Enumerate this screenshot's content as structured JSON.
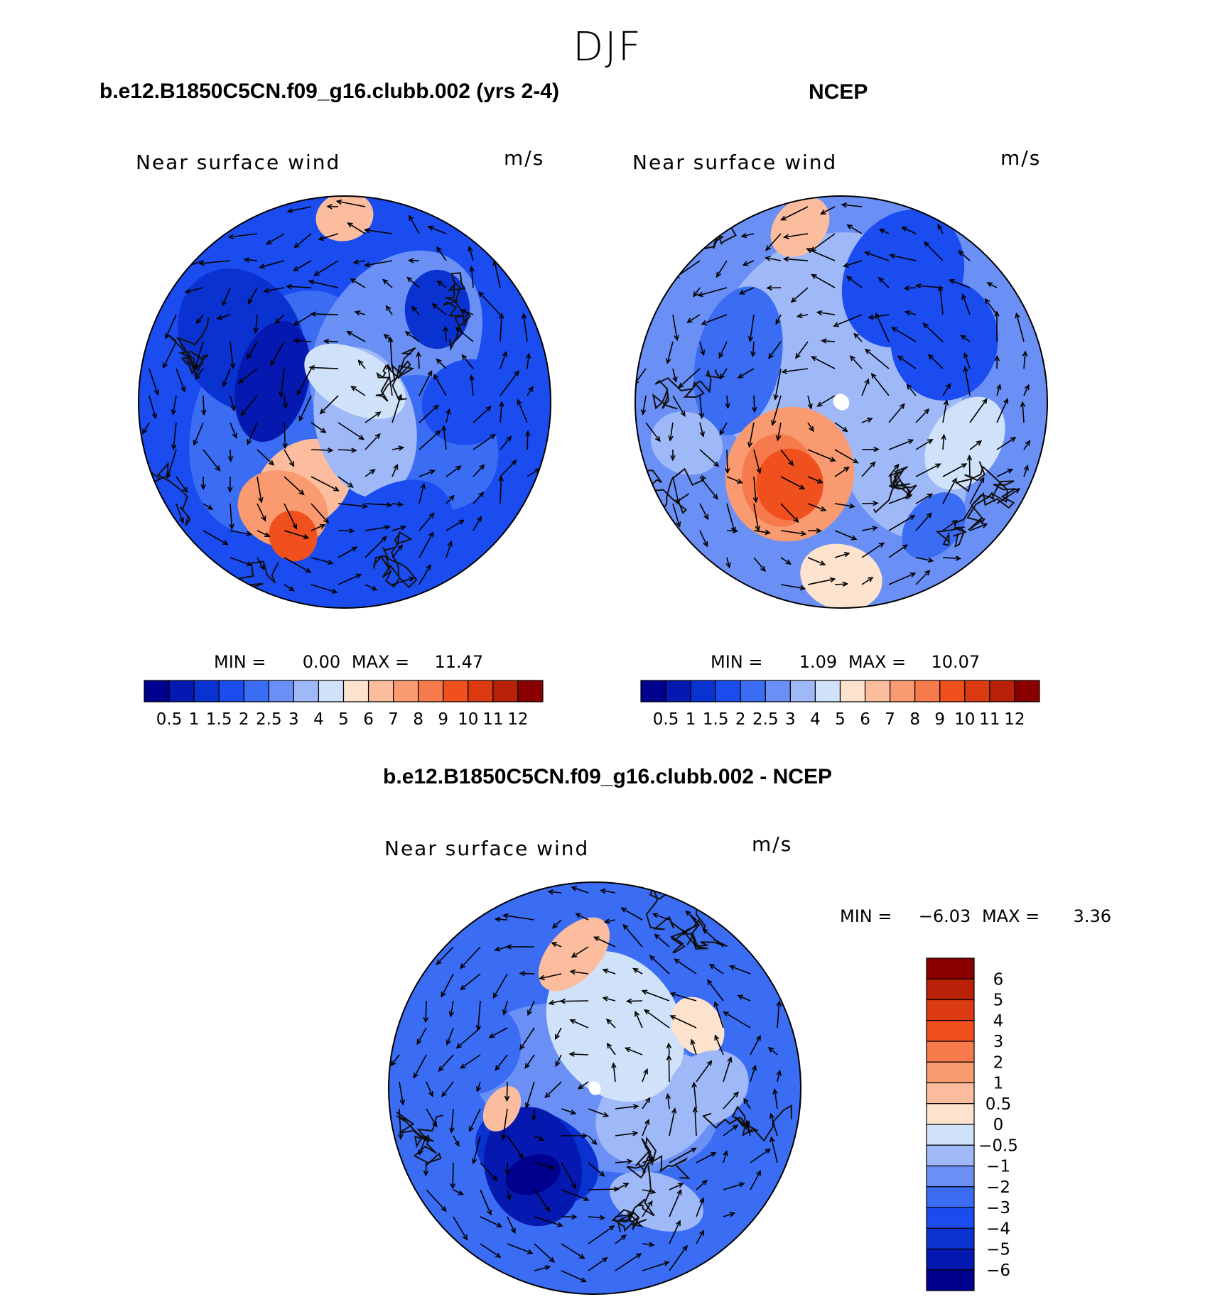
{
  "season_title": "DJF",
  "panels": [
    {
      "title": "b.e12.B1850C5CN.f09_g16.clubb.002 (yrs 2-4)",
      "variable": "Near surface wind",
      "units": "m/s",
      "min_label": "MIN =",
      "min_value": "0.00",
      "max_label": "MAX =",
      "max_value": "11.47"
    },
    {
      "title": "NCEP",
      "variable": "Near surface wind",
      "units": "m/s",
      "min_label": "MIN =",
      "min_value": "1.09",
      "max_label": "MAX =",
      "max_value": "10.07"
    },
    {
      "title": "b.e12.B1850C5CN.f09_g16.clubb.002 - NCEP",
      "variable": "Near surface wind",
      "units": "m/s",
      "min_label": "MIN =",
      "min_value": "−6.03",
      "max_label": "MAX =",
      "max_value": "3.36"
    }
  ],
  "chart_data": [
    {
      "type": "heatmap",
      "projection": "north polar stereographic",
      "title": "b.e12.B1850C5CN.f09_g16.clubb.002 (yrs 2-4)",
      "variable": "Near surface wind",
      "units": "m/s",
      "min": 0.0,
      "max": 11.47,
      "colorbar_levels": [
        "0.5",
        "1",
        "1.5",
        "2",
        "2.5",
        "3",
        "4",
        "5",
        "6",
        "7",
        "8",
        "9",
        "10",
        "11",
        "12"
      ],
      "colorbar_colors": [
        "#00008f",
        "#0519b0",
        "#0a32d0",
        "#1a4cf0",
        "#3a6cf4",
        "#6a90f6",
        "#9fb9f8",
        "#cfe2fa",
        "#fde3cd",
        "#fbbd9d",
        "#f99a70",
        "#f77a4c",
        "#f0501e",
        "#dc3a10",
        "#b82008",
        "#8a0000"
      ],
      "colorbar_orientation": "horizontal"
    },
    {
      "type": "heatmap",
      "projection": "north polar stereographic",
      "title": "NCEP",
      "variable": "Near surface wind",
      "units": "m/s",
      "min": 1.09,
      "max": 10.07,
      "colorbar_levels": [
        "0.5",
        "1",
        "1.5",
        "2",
        "2.5",
        "3",
        "4",
        "5",
        "6",
        "7",
        "8",
        "9",
        "10",
        "11",
        "12"
      ],
      "colorbar_colors": [
        "#00008f",
        "#0519b0",
        "#0a32d0",
        "#1a4cf0",
        "#3a6cf4",
        "#6a90f6",
        "#9fb9f8",
        "#cfe2fa",
        "#fde3cd",
        "#fbbd9d",
        "#f99a70",
        "#f77a4c",
        "#f0501e",
        "#dc3a10",
        "#b82008",
        "#8a0000"
      ],
      "colorbar_orientation": "horizontal"
    },
    {
      "type": "heatmap",
      "projection": "north polar stereographic",
      "title": "b.e12.B1850C5CN.f09_g16.clubb.002 - NCEP",
      "variable": "Near surface wind",
      "units": "m/s",
      "min": -6.03,
      "max": 3.36,
      "colorbar_levels": [
        "6",
        "5",
        "4",
        "3",
        "2",
        "1",
        "0.5",
        "0",
        "−0.5",
        "−1",
        "−2",
        "−3",
        "−4",
        "−5",
        "−6"
      ],
      "colorbar_colors": [
        "#8a0000",
        "#b82008",
        "#dc3a10",
        "#f0501e",
        "#f77a4c",
        "#f99a70",
        "#fbbd9d",
        "#fde3cd",
        "#cfe2fa",
        "#9fb9f8",
        "#6a90f6",
        "#3a6cf4",
        "#1a4cf0",
        "#0a32d0",
        "#0519b0",
        "#00008f"
      ],
      "colorbar_orientation": "vertical"
    }
  ]
}
